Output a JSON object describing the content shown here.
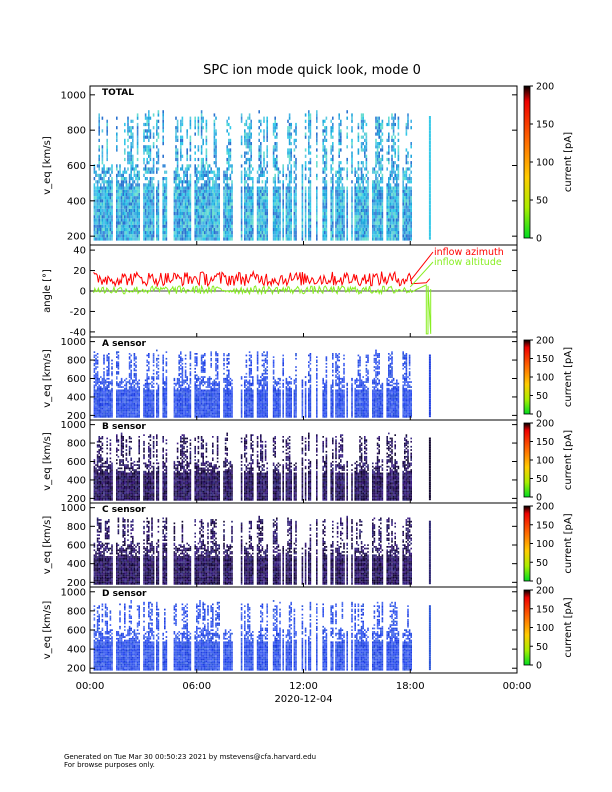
{
  "title": "SPC ion mode quick look, mode 0",
  "footer": {
    "line1": "Generated on Tue Mar 30 00:50:23 2021 by mstevens@cfa.harvard.edu",
    "line2": "For browse purposes only."
  },
  "colorbar": {
    "label": "current [pA]"
  },
  "chart_data": [
    {
      "type": "heatmap",
      "panel": "TOTAL",
      "title": "TOTAL",
      "ylabel": "v_eq [km/s]",
      "ylim": [
        150,
        1050
      ],
      "yticks": [
        "1000",
        "800",
        "600",
        "400",
        "200"
      ],
      "colorbar_ticks": [
        "0",
        "50",
        "100",
        "150",
        "200"
      ],
      "colorbar_range": [
        0,
        200
      ],
      "colorbar_label": "current [pA]",
      "palette": "cyan-blue",
      "data_xlim_hours": [
        0.2,
        18.05
      ],
      "extra_burst_hours": 19.05
    },
    {
      "type": "line",
      "panel": "angle",
      "ylabel": "angle [°]",
      "ylim": [
        -45,
        45
      ],
      "yticks": [
        "40",
        "20",
        "0",
        "-20",
        "-40"
      ],
      "series": [
        {
          "name": "inflow azimuth",
          "color": "#ff0000",
          "mean_deg": 12,
          "x_range_hours": [
            0.2,
            18.1
          ]
        },
        {
          "name": "inflow altitude",
          "color": "#88ee22",
          "mean_deg": 1,
          "x_range_hours": [
            0.2,
            19.2
          ]
        }
      ]
    },
    {
      "type": "heatmap",
      "panel": "A sensor",
      "title": "A sensor",
      "ylabel": "v_eq [km/s]",
      "ylim": [
        150,
        1050
      ],
      "yticks": [
        "1000",
        "800",
        "600",
        "400",
        "200"
      ],
      "colorbar_ticks": [
        "0",
        "50",
        "100",
        "150",
        "200"
      ],
      "colorbar_range": [
        0,
        200
      ],
      "colorbar_label": "current [pA]",
      "palette": "blue"
    },
    {
      "type": "heatmap",
      "panel": "B sensor",
      "title": "B sensor",
      "ylabel": "v_eq [km/s]",
      "ylim": [
        150,
        1050
      ],
      "yticks": [
        "1000",
        "800",
        "600",
        "400",
        "200"
      ],
      "colorbar_ticks": [
        "0",
        "50",
        "100",
        "150",
        "200"
      ],
      "colorbar_range": [
        0,
        200
      ],
      "colorbar_label": "current [pA]",
      "palette": "dark"
    },
    {
      "type": "heatmap",
      "panel": "C sensor",
      "title": "C sensor",
      "ylabel": "v_eq [km/s]",
      "ylim": [
        150,
        1050
      ],
      "yticks": [
        "1000",
        "800",
        "600",
        "400",
        "200"
      ],
      "colorbar_ticks": [
        "0",
        "50",
        "100",
        "150",
        "200"
      ],
      "colorbar_range": [
        0,
        200
      ],
      "colorbar_label": "current [pA]",
      "palette": "dark"
    },
    {
      "type": "heatmap",
      "panel": "D sensor",
      "title": "D sensor",
      "ylabel": "v_eq [km/s]",
      "ylim": [
        150,
        1050
      ],
      "yticks": [
        "1000",
        "800",
        "600",
        "400",
        "200"
      ],
      "colorbar_ticks": [
        "0",
        "50",
        "100",
        "150",
        "200"
      ],
      "colorbar_range": [
        0,
        200
      ],
      "colorbar_label": "current [pA]",
      "palette": "blue"
    }
  ],
  "x_axis": {
    "ticks": [
      "00:00",
      "06:00",
      "12:00",
      "18:00",
      "00:00"
    ],
    "tick_hours": [
      0,
      6,
      12,
      18,
      24
    ],
    "date_label": "2020-12-04",
    "xlim_hours": [
      0,
      24
    ]
  }
}
